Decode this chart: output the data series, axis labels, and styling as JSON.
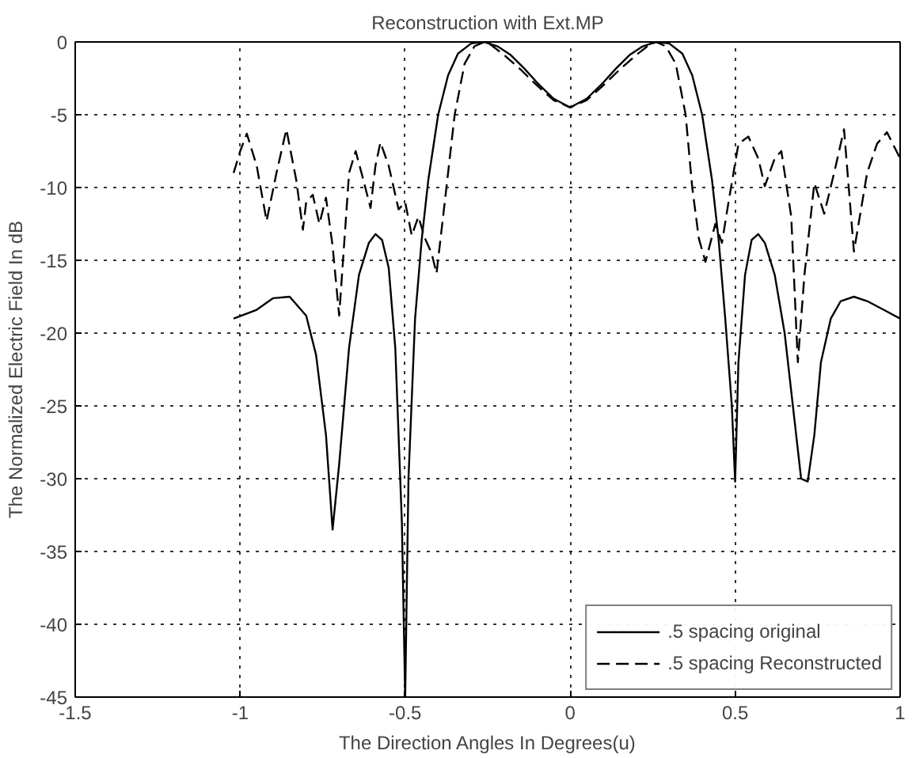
{
  "chart_data": {
    "type": "line",
    "title": "Reconstruction with Ext.MP",
    "xlabel": "The Direction Angles In Degrees(u)",
    "ylabel": "The Normalized Electric Field In dB",
    "xlim": [
      -1.5,
      1
    ],
    "xticks": [
      -1.5,
      -1,
      -0.5,
      0,
      0.5,
      1
    ],
    "ylim": [
      -45,
      0
    ],
    "yticks": [
      -45,
      -40,
      -35,
      -30,
      -25,
      -20,
      -15,
      -10,
      -5,
      0
    ],
    "grid": true,
    "legend": "bottom right",
    "marker": "none",
    "series": [
      {
        "name": ".5 spacing original",
        "color": "#000000",
        "line_style": "solid",
        "x": [
          -1.02,
          -0.95,
          -0.9,
          -0.85,
          -0.8,
          -0.77,
          -0.74,
          -0.72,
          -0.7,
          -0.67,
          -0.64,
          -0.61,
          -0.59,
          -0.57,
          -0.55,
          -0.53,
          -0.51,
          -0.5,
          -0.49,
          -0.47,
          -0.45,
          -0.43,
          -0.4,
          -0.37,
          -0.34,
          -0.3,
          -0.26,
          -0.22,
          -0.18,
          -0.14,
          -0.1,
          -0.05,
          0,
          0.05,
          0.1,
          0.14,
          0.18,
          0.22,
          0.26,
          0.3,
          0.34,
          0.37,
          0.4,
          0.43,
          0.45,
          0.47,
          0.49,
          0.5,
          0.51,
          0.53,
          0.55,
          0.57,
          0.59,
          0.62,
          0.65,
          0.68,
          0.7,
          0.72,
          0.74,
          0.76,
          0.79,
          0.82,
          0.86,
          0.9,
          0.95,
          1.0
        ],
        "values": [
          -19,
          -18.4,
          -17.6,
          -17.5,
          -18.8,
          -21.5,
          -27,
          -33.5,
          -29,
          -21,
          -16,
          -13.8,
          -13.2,
          -13.6,
          -15.5,
          -21,
          -33,
          -45,
          -30,
          -19,
          -13.6,
          -9.5,
          -5,
          -2.3,
          -0.8,
          -0.1,
          0,
          -0.3,
          -0.9,
          -1.8,
          -2.8,
          -3.9,
          -4.5,
          -3.9,
          -2.8,
          -1.8,
          -0.9,
          -0.3,
          0,
          -0.1,
          -0.8,
          -2.3,
          -5,
          -9.5,
          -13.6,
          -19,
          -25,
          -30.2,
          -22,
          -16,
          -13.6,
          -13.2,
          -13.8,
          -16,
          -20,
          -26,
          -30,
          -30.2,
          -27,
          -22,
          -19,
          -17.8,
          -17.5,
          -17.8,
          -18.4,
          -19
        ]
      },
      {
        "name": ".5 spacing Reconstructed",
        "color": "#000000",
        "line_style": "dashed",
        "x": [
          -1.02,
          -1.0,
          -0.98,
          -0.95,
          -0.92,
          -0.89,
          -0.86,
          -0.83,
          -0.81,
          -0.8,
          -0.78,
          -0.76,
          -0.74,
          -0.72,
          -0.7,
          -0.67,
          -0.65,
          -0.63,
          -0.605,
          -0.59,
          -0.575,
          -0.55,
          -0.52,
          -0.5,
          -0.48,
          -0.46,
          -0.44,
          -0.42,
          -0.405,
          -0.38,
          -0.35,
          -0.32,
          -0.29,
          -0.26,
          -0.24,
          -0.2,
          -0.15,
          -0.1,
          -0.05,
          0,
          0.05,
          0.1,
          0.15,
          0.2,
          0.24,
          0.26,
          0.29,
          0.32,
          0.35,
          0.37,
          0.39,
          0.41,
          0.44,
          0.46,
          0.48,
          0.51,
          0.54,
          0.57,
          0.59,
          0.62,
          0.64,
          0.67,
          0.69,
          0.71,
          0.74,
          0.77,
          0.8,
          0.83,
          0.86,
          0.9,
          0.93,
          0.96,
          1.0
        ],
        "values": [
          -9,
          -7.5,
          -6.3,
          -8.5,
          -12.3,
          -9,
          -6,
          -9.5,
          -12.9,
          -11,
          -10.5,
          -12.5,
          -10.7,
          -14,
          -18.8,
          -9,
          -7.5,
          -9.2,
          -11.4,
          -8.5,
          -6.9,
          -8.5,
          -11.5,
          -11,
          -13.3,
          -12,
          -13.5,
          -14.5,
          -15.9,
          -11,
          -5,
          -1.5,
          -0.3,
          0,
          -0.2,
          -0.9,
          -1.9,
          -3,
          -4,
          -4.5,
          -4,
          -3,
          -1.9,
          -0.9,
          -0.2,
          0,
          -0.3,
          -1.5,
          -5,
          -10,
          -13.5,
          -15.1,
          -12.5,
          -13.8,
          -11,
          -7,
          -6.5,
          -8,
          -9.9,
          -8,
          -7.5,
          -12,
          -22,
          -16,
          -9.7,
          -11.8,
          -9,
          -6,
          -14.4,
          -9,
          -7,
          -6.2,
          -8
        ]
      }
    ]
  }
}
